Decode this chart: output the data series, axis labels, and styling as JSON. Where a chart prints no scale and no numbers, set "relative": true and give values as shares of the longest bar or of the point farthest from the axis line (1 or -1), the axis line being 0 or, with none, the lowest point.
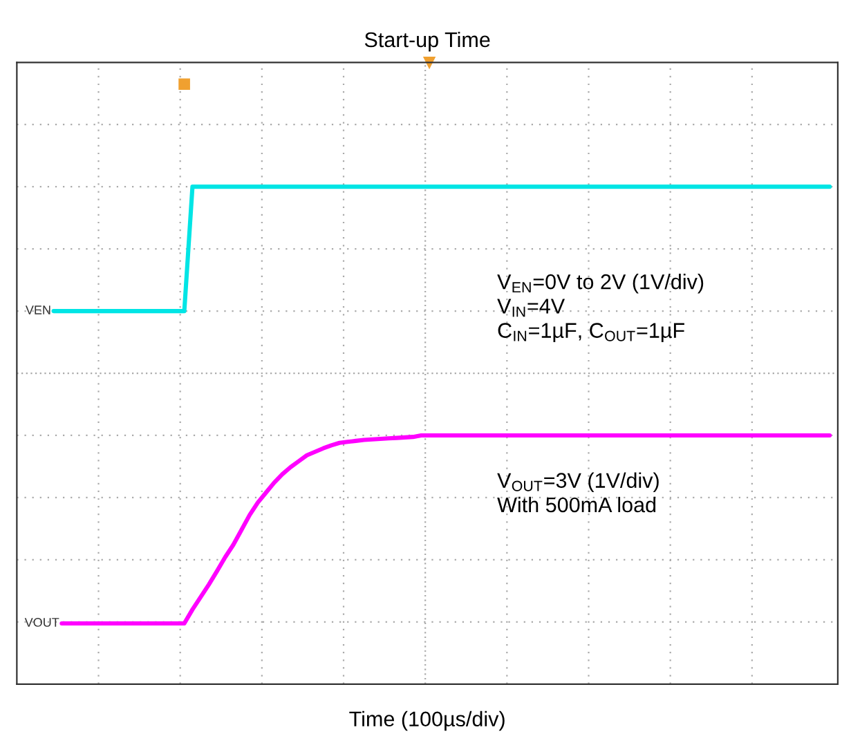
{
  "chart_data": {
    "type": "line",
    "title": "Start-up Time",
    "xlabel": "Time (100µs/div)",
    "relative": true,
    "grid": true,
    "legend": false,
    "categories": [
      null,
      null,
      null,
      null,
      null,
      null,
      null,
      null,
      null,
      null,
      null,
      null,
      null,
      null,
      null,
      null,
      null,
      null,
      null,
      null,
      null,
      null,
      null,
      null,
      null,
      null,
      null,
      null,
      null,
      null,
      null,
      null,
      null,
      null,
      null,
      null,
      null,
      null,
      null,
      null,
      null,
      null,
      null,
      null,
      null,
      null,
      null,
      null,
      null,
      null,
      null,
      null,
      null,
      null,
      null,
      null,
      null,
      null,
      null,
      null,
      null,
      null,
      null,
      null,
      null,
      null,
      null,
      null,
      null,
      null,
      null,
      null,
      null,
      null,
      null,
      null,
      null,
      null,
      null,
      null,
      null,
      null,
      null,
      null,
      null,
      null,
      null,
      null,
      null,
      null,
      null,
      null,
      null,
      null,
      null,
      null,
      null,
      null,
      null,
      null
    ],
    "series": [
      {
        "name": "VEN",
        "color": "#00e5e5",
        "values": [
          null,
          null,
          null,
          null,
          0.75,
          0.75,
          0.75,
          0.75,
          0.75,
          0.75,
          0.75,
          0.75,
          0.75,
          0.75,
          0.75,
          0.75,
          0.75,
          0.75,
          0.75,
          0.75,
          0.75,
          1.0,
          1.0,
          1.0,
          1.0,
          1.0,
          1.0,
          1.0,
          1.0,
          1.0,
          1.0,
          1.0,
          1.0,
          1.0,
          1.0,
          1.0,
          1.0,
          1.0,
          1.0,
          1.0,
          1.0,
          1.0,
          1.0,
          1.0,
          1.0,
          1.0,
          1.0,
          1.0,
          1.0,
          1.0,
          1.0,
          1.0,
          1.0,
          1.0,
          1.0,
          1.0,
          1.0,
          1.0,
          1.0,
          1.0,
          1.0,
          1.0,
          1.0,
          1.0,
          1.0,
          1.0,
          1.0,
          1.0,
          1.0,
          1.0,
          1.0,
          1.0,
          1.0,
          1.0,
          1.0,
          1.0,
          1.0,
          1.0,
          1.0,
          1.0,
          1.0,
          1.0,
          1.0,
          1.0,
          1.0,
          1.0,
          1.0,
          1.0,
          1.0,
          1.0,
          1.0,
          1.0,
          1.0,
          1.0,
          1.0,
          1.0,
          1.0,
          1.0,
          1.0,
          1.0
        ]
      },
      {
        "name": "VOUT",
        "color": "#ff00ff",
        "values": [
          null,
          null,
          null,
          null,
          null,
          0.122,
          0.122,
          0.122,
          0.122,
          0.122,
          0.122,
          0.122,
          0.122,
          0.122,
          0.122,
          0.122,
          0.122,
          0.122,
          0.122,
          0.122,
          0.122,
          0.15,
          0.175,
          0.2,
          0.227,
          0.255,
          0.28,
          0.31,
          0.34,
          0.365,
          0.385,
          0.405,
          0.422,
          0.436,
          0.448,
          0.46,
          0.467,
          0.474,
          0.48,
          0.485,
          0.487,
          0.489,
          0.491,
          0.492,
          0.493,
          0.494,
          0.495,
          0.496,
          0.497,
          0.5,
          0.5,
          0.5,
          0.5,
          0.5,
          0.5,
          0.5,
          0.5,
          0.5,
          0.5,
          0.5,
          0.5,
          0.5,
          0.5,
          0.5,
          0.5,
          0.5,
          0.5,
          0.5,
          0.5,
          0.5,
          0.5,
          0.5,
          0.5,
          0.5,
          0.5,
          0.5,
          0.5,
          0.5,
          0.5,
          0.5,
          0.5,
          0.5,
          0.5,
          0.5,
          0.5,
          0.5,
          0.5,
          0.5,
          0.5,
          0.5,
          0.5,
          0.5,
          0.5,
          0.5,
          0.5,
          0.5,
          0.5,
          0.5,
          0.5,
          0.5
        ]
      }
    ],
    "annotations": [
      "V$_{EN}$=0V to 2V (1V/div)\nV$_{IN}$=4V\nC$_{IN}$=1µF, C$_{OUT}$=1µF",
      "V$_{OUT}$=3V (1V/div)\nWith 500mA load"
    ]
  }
}
